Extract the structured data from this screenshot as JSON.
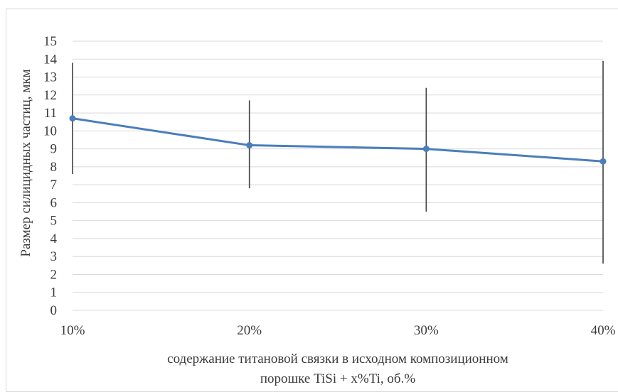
{
  "chart_data": {
    "type": "line",
    "title": "",
    "xlabel_lines": [
      "содержание титановой связки в исходном композиционном",
      "порошке TiSi + x%Ti, об.%"
    ],
    "ylabel": "Размер силицидных частиц, мкм",
    "categories": [
      "10%",
      "20%",
      "30%",
      "40%"
    ],
    "ylim": [
      0,
      15
    ],
    "yticks": [
      0,
      1,
      2,
      3,
      4,
      5,
      6,
      7,
      8,
      9,
      10,
      11,
      12,
      13,
      14,
      15
    ],
    "grid": true,
    "series": [
      {
        "values": [
          10.7,
          9.2,
          9.0,
          8.3
        ],
        "error_low": [
          7.6,
          6.8,
          5.5,
          2.6
        ],
        "error_high": [
          13.8,
          11.7,
          12.4,
          13.9
        ],
        "color": "#4a7ebb",
        "error_color": "#404040"
      }
    ]
  }
}
